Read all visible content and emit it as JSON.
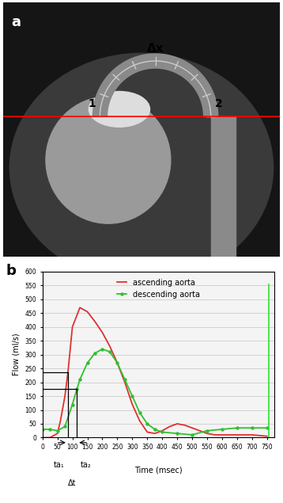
{
  "panel_a": {
    "label": "a",
    "point_labels": [
      "1",
      "2"
    ],
    "distance_label": "Δx"
  },
  "chart_data": {
    "type": "line",
    "panel_label": "b",
    "xlabel": "Time (msec)",
    "ylabel": "Flow (ml/s)",
    "xlim": [
      0,
      775
    ],
    "xticks": [
      0,
      50,
      100,
      150,
      200,
      250,
      300,
      350,
      400,
      450,
      500,
      550,
      600,
      650,
      700,
      750
    ],
    "ylim": [
      0,
      600
    ],
    "yticks": [
      0,
      50,
      100,
      150,
      200,
      250,
      300,
      350,
      400,
      450,
      500,
      550,
      600
    ],
    "grid": true,
    "legend": "upper center",
    "series": [
      {
        "name": "ascending aorta",
        "color": "#e03030",
        "marker": "none",
        "line_style": "solid",
        "x": [
          0,
          25,
          50,
          60,
          75,
          85,
          100,
          125,
          150,
          175,
          200,
          225,
          250,
          275,
          300,
          325,
          350,
          375,
          400,
          425,
          450,
          475,
          500,
          525,
          550,
          575,
          600,
          650,
          700,
          750
        ],
        "values": [
          0,
          0,
          15,
          60,
          150,
          235,
          400,
          470,
          455,
          420,
          380,
          330,
          270,
          200,
          120,
          60,
          20,
          15,
          25,
          40,
          50,
          45,
          35,
          25,
          15,
          10,
          10,
          10,
          10,
          5
        ]
      },
      {
        "name": "descending aorta",
        "color": "#30c030",
        "marker": "dot",
        "line_style": "solid",
        "x": [
          0,
          25,
          50,
          75,
          100,
          115,
          125,
          150,
          175,
          200,
          225,
          250,
          275,
          300,
          325,
          350,
          375,
          400,
          450,
          500,
          550,
          600,
          650,
          700,
          750
        ],
        "values": [
          30,
          30,
          25,
          40,
          120,
          175,
          210,
          270,
          305,
          320,
          310,
          270,
          210,
          150,
          90,
          50,
          30,
          20,
          15,
          10,
          25,
          30,
          35,
          35,
          35
        ]
      }
    ],
    "markers": [
      {
        "label": "ta₁",
        "time": 85,
        "flow": 235
      },
      {
        "label": "ta₂",
        "time": 115,
        "flow": 175
      }
    ],
    "interval_label": "Δt",
    "cursor": {
      "time": 755,
      "top": 555,
      "color": "#30e030"
    }
  }
}
